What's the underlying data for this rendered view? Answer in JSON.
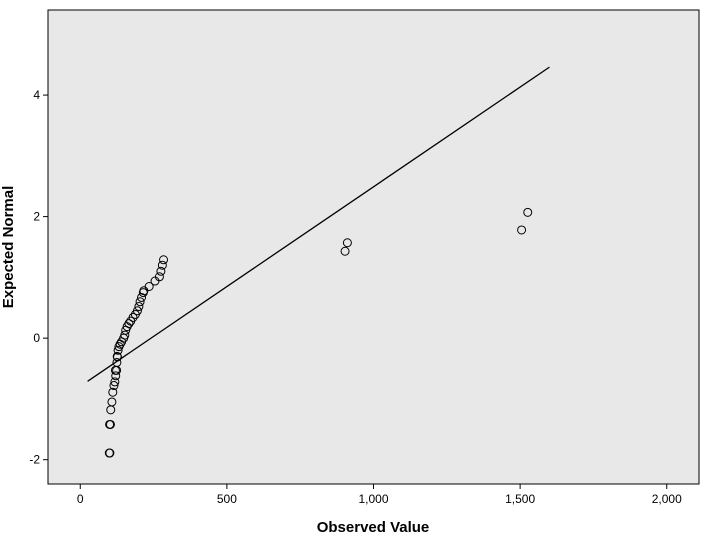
{
  "chart_data": {
    "type": "scatter",
    "title": "",
    "xlabel": "Observed Value",
    "ylabel": "Expected Normal",
    "xlim": [
      -110,
      2110
    ],
    "ylim": [
      -2.4,
      5.4
    ],
    "xticks": [
      0,
      500,
      1000,
      1500,
      2000
    ],
    "xtick_labels": [
      "0",
      "500",
      "1,000",
      "1,500",
      "2,000"
    ],
    "yticks": [
      -2,
      0,
      2,
      4
    ],
    "ytick_labels": [
      "-2",
      "0",
      "2",
      "4"
    ],
    "grid": false,
    "legend": "none",
    "colors": {
      "plot_background": "#e8e8e8",
      "marker_stroke": "#000000",
      "line": "#000000"
    },
    "reference_line": {
      "x": [
        25,
        1600
      ],
      "y": [
        -0.71,
        4.46
      ]
    },
    "points": [
      [
        99,
        -1.89
      ],
      [
        101,
        -1.89
      ],
      [
        100,
        -1.42
      ],
      [
        103,
        -1.42
      ],
      [
        104,
        -1.18
      ],
      [
        108,
        -1.05
      ],
      [
        111,
        -0.89
      ],
      [
        115,
        -0.78
      ],
      [
        118,
        -0.72
      ],
      [
        121,
        -0.62
      ],
      [
        120,
        -0.53
      ],
      [
        124,
        -0.53
      ],
      [
        125,
        -0.4
      ],
      [
        126,
        -0.3
      ],
      [
        127,
        -0.31
      ],
      [
        129,
        -0.2
      ],
      [
        132,
        -0.14
      ],
      [
        136,
        -0.1
      ],
      [
        141,
        -0.06
      ],
      [
        148,
        0.0
      ],
      [
        152,
        0.05
      ],
      [
        155,
        0.13
      ],
      [
        160,
        0.19
      ],
      [
        166,
        0.24
      ],
      [
        172,
        0.28
      ],
      [
        180,
        0.34
      ],
      [
        188,
        0.39
      ],
      [
        195,
        0.45
      ],
      [
        200,
        0.52
      ],
      [
        204,
        0.6
      ],
      [
        209,
        0.67
      ],
      [
        215,
        0.75
      ],
      [
        217,
        0.78
      ],
      [
        235,
        0.85
      ],
      [
        255,
        0.94
      ],
      [
        270,
        1.01
      ],
      [
        275,
        1.1
      ],
      [
        280,
        1.2
      ],
      [
        284,
        1.29
      ],
      [
        903,
        1.43
      ],
      [
        911,
        1.57
      ],
      [
        1505,
        1.78
      ],
      [
        1526,
        2.07
      ]
    ]
  }
}
